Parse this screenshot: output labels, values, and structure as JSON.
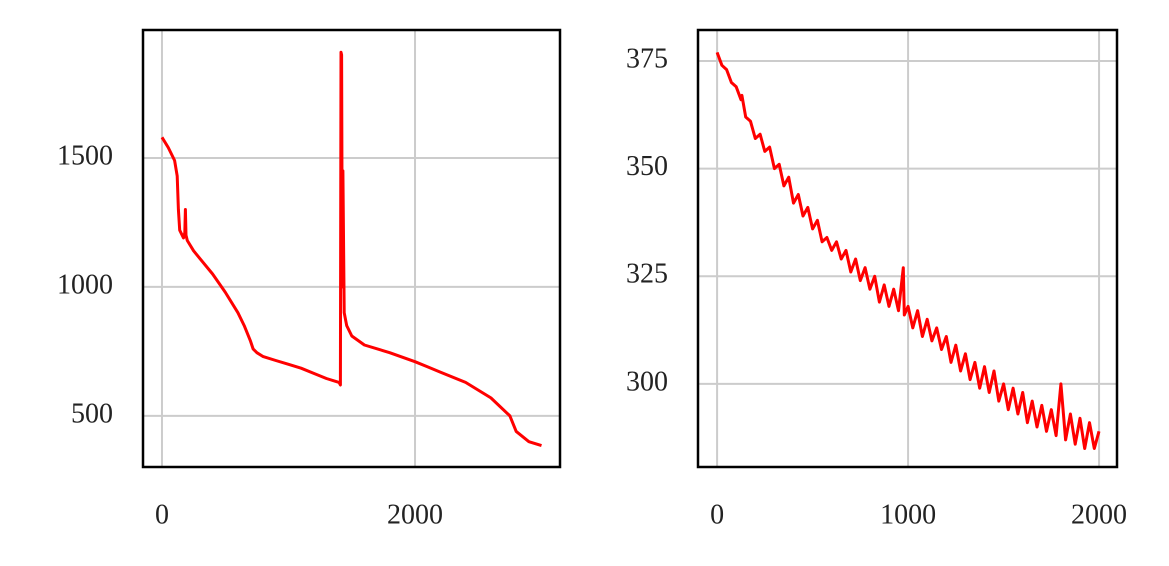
{
  "chart_data": [
    {
      "type": "line",
      "grid": true,
      "xlim": [
        -150,
        3146
      ],
      "ylim": [
        302,
        1996
      ],
      "xticks": [
        0,
        2000
      ],
      "yticks": [
        500,
        1000,
        1500
      ],
      "series": [
        {
          "color": "#ff0000",
          "x": [
            0,
            50,
            100,
            120,
            130,
            140,
            160,
            170,
            180,
            185,
            190,
            200,
            250,
            300,
            400,
            500,
            600,
            650,
            700,
            720,
            750,
            800,
            900,
            1000,
            1100,
            1200,
            1300,
            1400,
            1410,
            1415,
            1420,
            1425,
            1430,
            1440,
            1460,
            1500,
            1600,
            1800,
            2000,
            2100,
            2200,
            2400,
            2600,
            2750,
            2800,
            2900,
            3000
          ],
          "values": [
            1580,
            1540,
            1490,
            1430,
            1300,
            1220,
            1200,
            1190,
            1210,
            1300,
            1200,
            1180,
            1140,
            1110,
            1050,
            980,
            900,
            850,
            790,
            760,
            745,
            730,
            715,
            700,
            685,
            665,
            645,
            630,
            620,
            1910,
            1900,
            1000,
            1450,
            900,
            850,
            810,
            775,
            745,
            710,
            690,
            670,
            630,
            570,
            500,
            440,
            400,
            385
          ]
        }
      ]
    },
    {
      "type": "line",
      "grid": true,
      "xlim": [
        -100,
        2094
      ],
      "ylim": [
        280.7,
        382.2
      ],
      "xticks": [
        0,
        1000,
        2000
      ],
      "yticks": [
        300,
        325,
        350,
        375
      ],
      "series": [
        {
          "color": "#ff0000",
          "x": [
            0,
            25,
            50,
            75,
            100,
            125,
            130,
            150,
            175,
            200,
            225,
            250,
            275,
            300,
            325,
            350,
            375,
            400,
            425,
            450,
            475,
            500,
            525,
            550,
            575,
            600,
            625,
            650,
            675,
            700,
            725,
            750,
            775,
            800,
            825,
            850,
            875,
            900,
            925,
            950,
            975,
            980,
            1000,
            1025,
            1050,
            1075,
            1100,
            1125,
            1150,
            1175,
            1200,
            1225,
            1250,
            1275,
            1300,
            1325,
            1350,
            1375,
            1400,
            1425,
            1450,
            1475,
            1500,
            1525,
            1550,
            1575,
            1600,
            1625,
            1650,
            1675,
            1700,
            1725,
            1750,
            1775,
            1800,
            1825,
            1850,
            1875,
            1900,
            1925,
            1950,
            1975,
            2000
          ],
          "values": [
            377,
            374,
            373,
            370,
            369,
            366,
            367,
            362,
            361,
            357,
            358,
            354,
            355,
            350,
            351,
            346,
            348,
            342,
            344,
            339,
            341,
            336,
            338,
            333,
            334,
            331,
            333,
            329,
            331,
            326,
            329,
            324,
            327,
            322,
            325,
            319,
            323,
            318,
            322,
            317,
            327,
            316,
            318,
            313,
            317,
            311,
            315,
            310,
            313,
            308,
            311,
            305,
            309,
            303,
            307,
            301,
            305,
            299,
            304,
            298,
            303,
            296,
            300,
            294,
            299,
            293,
            298,
            291,
            296,
            290,
            295,
            289,
            294,
            288,
            300,
            287,
            293,
            286,
            292,
            285,
            291,
            285,
            289
          ]
        }
      ]
    }
  ]
}
